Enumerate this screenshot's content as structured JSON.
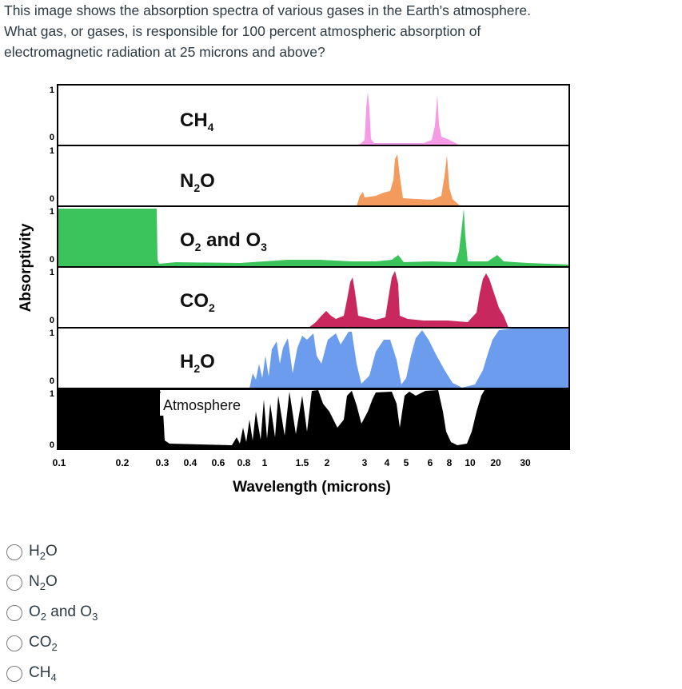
{
  "question": {
    "line1": "This image shows the absorption spectra of various gases in the Earth's atmosphere.",
    "line2": "What gas, or gases, is responsible for 100 percent atmospheric absorption of",
    "line3": "electromagnetic radiation at 25 microns and above?"
  },
  "figure": {
    "ylabel": "Absorptivity",
    "xlabel": "Wavelength (microns)",
    "x_ticks": [
      "0.1",
      "0.2",
      "0.3",
      "0.4",
      "0.6",
      "0.8",
      "1",
      "1.5",
      "2",
      "3",
      "4",
      "5",
      "6",
      "8",
      "10",
      "20",
      "30"
    ],
    "y_top_label": "1",
    "y_bottom_label": "0",
    "panels": [
      {
        "label": "CH",
        "sub": "4",
        "color": "#f59be6"
      },
      {
        "label": "N",
        "sub": "2",
        "tail": "O",
        "color": "#f39a5d"
      },
      {
        "label": "O",
        "sub": "2",
        "tail": " and O",
        "sub2": "3",
        "color": "#3cc45c"
      },
      {
        "label": "CO",
        "sub": "2",
        "color": "#c8285e"
      },
      {
        "label": "H",
        "sub": "2",
        "tail": "O",
        "color": "#6b9cee"
      },
      {
        "label": "Atmosphere",
        "color": "#000000"
      }
    ]
  },
  "options": [
    {
      "pre": "H",
      "sub": "2",
      "post": "O"
    },
    {
      "pre": "N",
      "sub": "2",
      "post": "O"
    },
    {
      "pre": "O",
      "sub": "2",
      "post": " and O",
      "sub2": "3"
    },
    {
      "pre": "CO",
      "sub": "2",
      "post": ""
    },
    {
      "pre": "CH",
      "sub": "4",
      "post": ""
    }
  ]
}
